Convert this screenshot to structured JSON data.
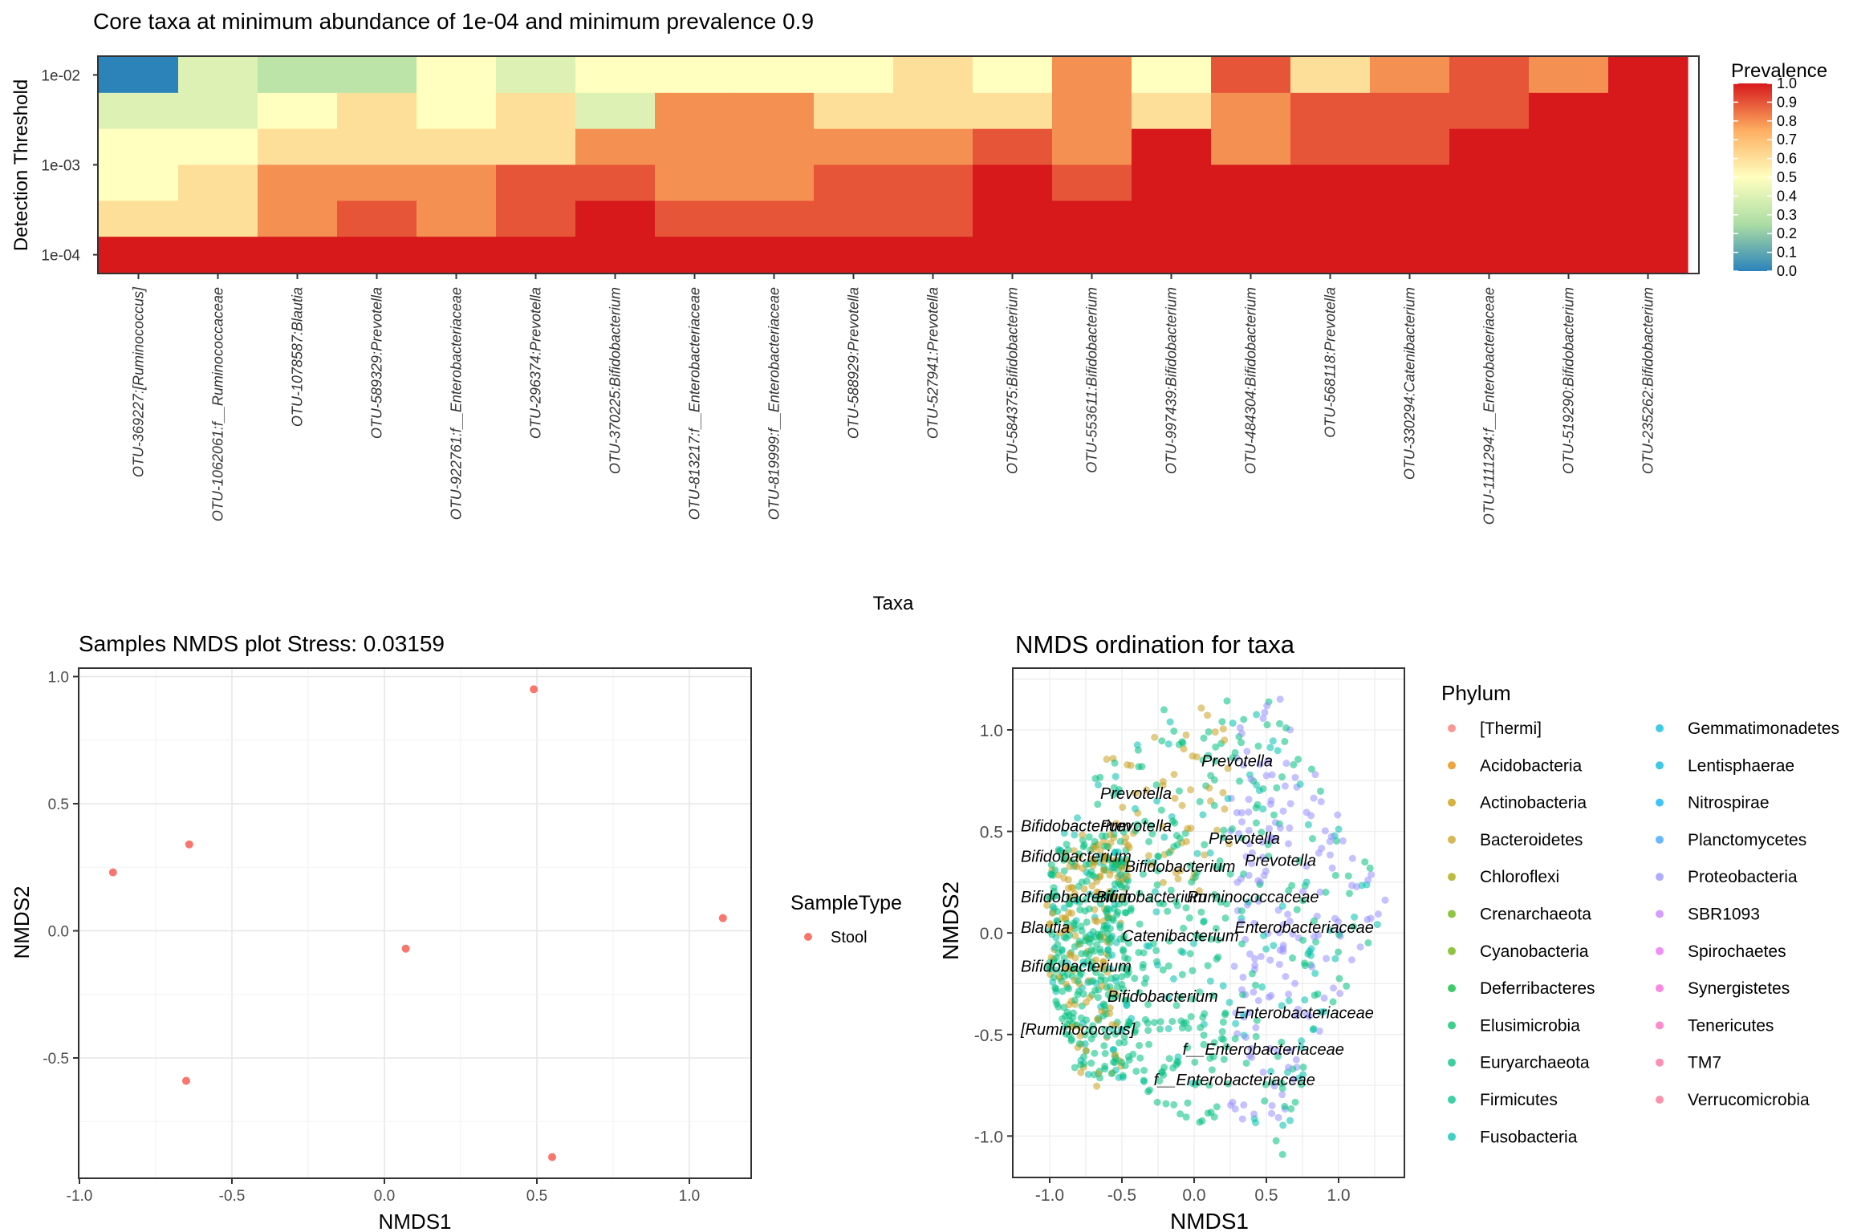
{
  "chart_data": [
    {
      "type": "heatmap",
      "title": "Core taxa at minimum abundance of 1e-04 and minimum prevalence 0.9",
      "xlabel": "Taxa",
      "ylabel": "Detection Threshold",
      "y_tick_labels": [
        "1e-02",
        "1e-03",
        "1e-04"
      ],
      "y_tick_rows": [
        0,
        2.5,
        5
      ],
      "x_categories": [
        "OTU-369227:[Ruminococcus]",
        "OTU-1062061:f__Ruminococcaceae",
        "OTU-1078587:Blautia",
        "OTU-589329:Prevotella",
        "OTU-922761:f__Enterobacteriaceae",
        "OTU-296374:Prevotella",
        "OTU-370225:Bifidobacterium",
        "OTU-813217:f__Enterobacteriaceae",
        "OTU-819999:f__Enterobacteriaceae",
        "OTU-588929:Prevotella",
        "OTU-527941:Prevotella",
        "OTU-584375:Bifidobacterium",
        "OTU-553611:Bifidobacterium",
        "OTU-997439:Bifidobacterium",
        "OTU-484304:Bifidobacterium",
        "OTU-568118:Prevotella",
        "OTU-330294:Catenibacterium",
        "OTU-1111294:f__Enterobacteriaceae",
        "OTU-519290:Bifidobacterium",
        "OTU-235262:Bifidobacterium"
      ],
      "rows_top_to_bottom_note": "",
      "prevalence_matrix": [
        [
          0.0,
          0.4,
          0.3,
          0.3,
          0.5,
          0.4,
          0.5,
          0.5,
          0.5,
          0.5,
          0.6,
          0.5,
          0.8,
          0.5,
          0.9,
          0.6,
          0.8,
          0.9,
          0.8,
          1.0
        ],
        [
          0.4,
          0.4,
          0.5,
          0.6,
          0.5,
          0.6,
          0.4,
          0.8,
          0.8,
          0.6,
          0.6,
          0.6,
          0.8,
          0.6,
          0.8,
          0.9,
          0.9,
          0.9,
          1.0,
          1.0
        ],
        [
          0.5,
          0.5,
          0.6,
          0.6,
          0.6,
          0.6,
          0.8,
          0.8,
          0.8,
          0.8,
          0.8,
          0.9,
          0.8,
          1.0,
          0.8,
          0.9,
          0.9,
          1.0,
          1.0,
          1.0
        ],
        [
          0.5,
          0.6,
          0.8,
          0.8,
          0.8,
          0.9,
          0.9,
          0.8,
          0.8,
          0.9,
          0.9,
          1.0,
          0.9,
          1.0,
          1.0,
          1.0,
          1.0,
          1.0,
          1.0,
          1.0
        ],
        [
          0.6,
          0.6,
          0.8,
          0.9,
          0.8,
          0.9,
          1.0,
          0.9,
          0.9,
          0.9,
          0.9,
          1.0,
          1.0,
          1.0,
          1.0,
          1.0,
          1.0,
          1.0,
          1.0,
          1.0
        ],
        [
          1.0,
          1.0,
          1.0,
          1.0,
          1.0,
          1.0,
          1.0,
          1.0,
          1.0,
          1.0,
          1.0,
          1.0,
          1.0,
          1.0,
          1.0,
          1.0,
          1.0,
          1.0,
          1.0,
          1.0
        ]
      ],
      "legend": {
        "title": "Prevalence",
        "ticks": [
          "1.0",
          "0.9",
          "0.8",
          "0.7",
          "0.6",
          "0.5",
          "0.4",
          "0.3",
          "0.2",
          "0.1",
          "0.0"
        ],
        "gradient": [
          "#2b83ba",
          "#abdda4",
          "#ffffbf",
          "#fdae61",
          "#d7191c"
        ]
      }
    },
    {
      "type": "scatter",
      "title": "Samples NMDS plot Stress: 0.03159",
      "xlabel": "NMDS1",
      "ylabel": "NMDS2",
      "xlim": [
        -1.0,
        1.2
      ],
      "ylim": [
        -0.97,
        1.03
      ],
      "x_ticks": [
        "-1.0",
        "-0.5",
        "0.0",
        "0.5",
        "1.0"
      ],
      "y_ticks": [
        "1.0",
        "0.5",
        "0.0",
        "-0.5"
      ],
      "grid": true,
      "legend": {
        "title": "SampleType",
        "entries": [
          {
            "name": "Stool",
            "color": "#f8766d"
          }
        ]
      },
      "series": [
        {
          "name": "Stool",
          "color": "#f8766d",
          "points": [
            {
              "x": 0.49,
              "y": 0.95
            },
            {
              "x": -0.64,
              "y": 0.34
            },
            {
              "x": -0.89,
              "y": 0.23
            },
            {
              "x": 1.11,
              "y": 0.05
            },
            {
              "x": 0.07,
              "y": -0.07
            },
            {
              "x": -0.65,
              "y": -0.59
            },
            {
              "x": 0.55,
              "y": -0.89
            }
          ]
        }
      ]
    },
    {
      "type": "scatter",
      "title": "NMDS ordination for taxa",
      "xlabel": "NMDS1",
      "ylabel": "NMDS2",
      "xlim": [
        -1.25,
        1.45
      ],
      "ylim": [
        -1.2,
        1.3
      ],
      "x_ticks": [
        "-1.0",
        "-0.5",
        "0.0",
        "0.5",
        "1.0"
      ],
      "y_ticks": [
        "1.0",
        "0.5",
        "0.0",
        "-0.5",
        "-1.0"
      ],
      "grid": true,
      "legend": {
        "title": "Phylum",
        "entries": [
          {
            "name": "[Thermi]",
            "color": "#f8766d"
          },
          {
            "name": "Acidobacteria",
            "color": "#e58700"
          },
          {
            "name": "Actinobacteria",
            "color": "#c99800"
          },
          {
            "name": "Bacteroidetes",
            "color": "#c8a020"
          },
          {
            "name": "Chloroflexi",
            "color": "#a3a500"
          },
          {
            "name": "Crenarchaeota",
            "color": "#6bb100"
          },
          {
            "name": "Cyanobacteria",
            "color": "#6bb100"
          },
          {
            "name": "Deferribacteres",
            "color": "#00ba38"
          },
          {
            "name": "Elusimicrobia",
            "color": "#00be67"
          },
          {
            "name": "Euryarchaeota",
            "color": "#00bf7d"
          },
          {
            "name": "Firmicutes",
            "color": "#00c08b"
          },
          {
            "name": "Fusobacteria",
            "color": "#00c0af"
          },
          {
            "name": "Gemmatimonadetes",
            "color": "#00bcd8"
          },
          {
            "name": "Lentisphaerae",
            "color": "#00b6e0"
          },
          {
            "name": "Nitrospirae",
            "color": "#00b0f6"
          },
          {
            "name": "Planctomycetes",
            "color": "#35a2ff"
          },
          {
            "name": "Proteobacteria",
            "color": "#9590ff"
          },
          {
            "name": "SBR1093",
            "color": "#c77cff"
          },
          {
            "name": "Spirochaetes",
            "color": "#e76bf3"
          },
          {
            "name": "Synergistetes",
            "color": "#fa62db"
          },
          {
            "name": "Tenericutes",
            "color": "#ff62bc"
          },
          {
            "name": "TM7",
            "color": "#ff6a98"
          },
          {
            "name": "Verrucomicrobia",
            "color": "#ff6c91"
          }
        ]
      },
      "annotations": [
        {
          "text": "Prevotella",
          "x": 0.05,
          "y": 0.82
        },
        {
          "text": "Prevotella",
          "x": -0.65,
          "y": 0.66
        },
        {
          "text": "Bifidobacterium",
          "x": -1.2,
          "y": 0.5
        },
        {
          "text": "Prevotella",
          "x": -0.65,
          "y": 0.5
        },
        {
          "text": "Prevotella",
          "x": 0.1,
          "y": 0.44
        },
        {
          "text": "Bifidobacterium",
          "x": -1.2,
          "y": 0.35
        },
        {
          "text": "Prevotella",
          "x": 0.35,
          "y": 0.33
        },
        {
          "text": "Bifidobacterium",
          "x": -0.48,
          "y": 0.3
        },
        {
          "text": "Bifidobacterium",
          "x": -1.2,
          "y": 0.15
        },
        {
          "text": "Bifidobacterium",
          "x": -0.68,
          "y": 0.15
        },
        {
          "text": "Ruminococcaceae",
          "x": -0.05,
          "y": 0.15
        },
        {
          "text": "Blautia",
          "x": -1.2,
          "y": 0.0
        },
        {
          "text": "Enterobacteriaceae",
          "x": 0.28,
          "y": 0.0
        },
        {
          "text": "Catenibacterium",
          "x": -0.5,
          "y": -0.04
        },
        {
          "text": "Bifidobacterium",
          "x": -1.2,
          "y": -0.19
        },
        {
          "text": "Bifidobacterium",
          "x": -0.6,
          "y": -0.34
        },
        {
          "text": "Enterobacteriaceae",
          "x": 0.28,
          "y": -0.42
        },
        {
          "text": "[Ruminococcus]",
          "x": -1.2,
          "y": -0.5
        },
        {
          "text": "f__Enterobacteriaceae",
          "x": -0.08,
          "y": -0.6
        },
        {
          "text": "f__Enterobacteriaceae",
          "x": -0.28,
          "y": -0.75
        }
      ]
    }
  ]
}
